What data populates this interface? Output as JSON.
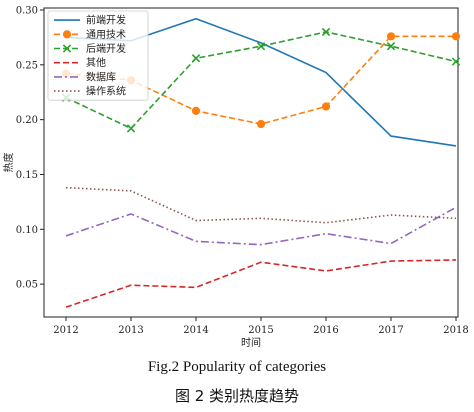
{
  "chart_data": {
    "type": "line",
    "categories": [
      "2012",
      "2013",
      "2014",
      "2015",
      "2016",
      "2017",
      "2018"
    ],
    "xlabel": "时间",
    "ylabel": "热度",
    "ylim": [
      0.02,
      0.3
    ],
    "yticks": [
      "0.05",
      "0.10",
      "0.15",
      "0.20",
      "0.25",
      "0.30"
    ],
    "grid": false,
    "legend": "top-left",
    "series": [
      {
        "name": "前端开发",
        "values": [
          0.275,
          0.272,
          0.292,
          0.27,
          0.243,
          0.185,
          0.176
        ],
        "color": "#1f77b4",
        "style": "solid",
        "marker": "none"
      },
      {
        "name": "通用技术",
        "values": [
          0.242,
          0.236,
          0.208,
          0.196,
          0.212,
          0.276,
          0.276
        ],
        "color": "#ff7f0e",
        "style": "dashed",
        "marker": "circle"
      },
      {
        "name": "后端开发",
        "values": [
          0.22,
          0.192,
          0.256,
          0.267,
          0.28,
          0.267,
          0.253
        ],
        "color": "#2ca02c",
        "style": "dashed",
        "marker": "x"
      },
      {
        "name": "其他",
        "values": [
          0.029,
          0.049,
          0.047,
          0.07,
          0.062,
          0.071,
          0.072
        ],
        "color": "#d62728",
        "style": "dashed",
        "marker": "none"
      },
      {
        "name": "数据库",
        "values": [
          0.094,
          0.114,
          0.089,
          0.086,
          0.096,
          0.087,
          0.12
        ],
        "color": "#9467bd",
        "style": "dashdot",
        "marker": "none"
      },
      {
        "name": "操作系统",
        "values": [
          0.138,
          0.135,
          0.108,
          0.11,
          0.106,
          0.113,
          0.11
        ],
        "color": "#8c564b",
        "style": "dotted",
        "marker": "none"
      }
    ]
  },
  "captions": {
    "en": "Fig.2    Popularity of categories",
    "cn": "图 2    类别热度趋势"
  }
}
